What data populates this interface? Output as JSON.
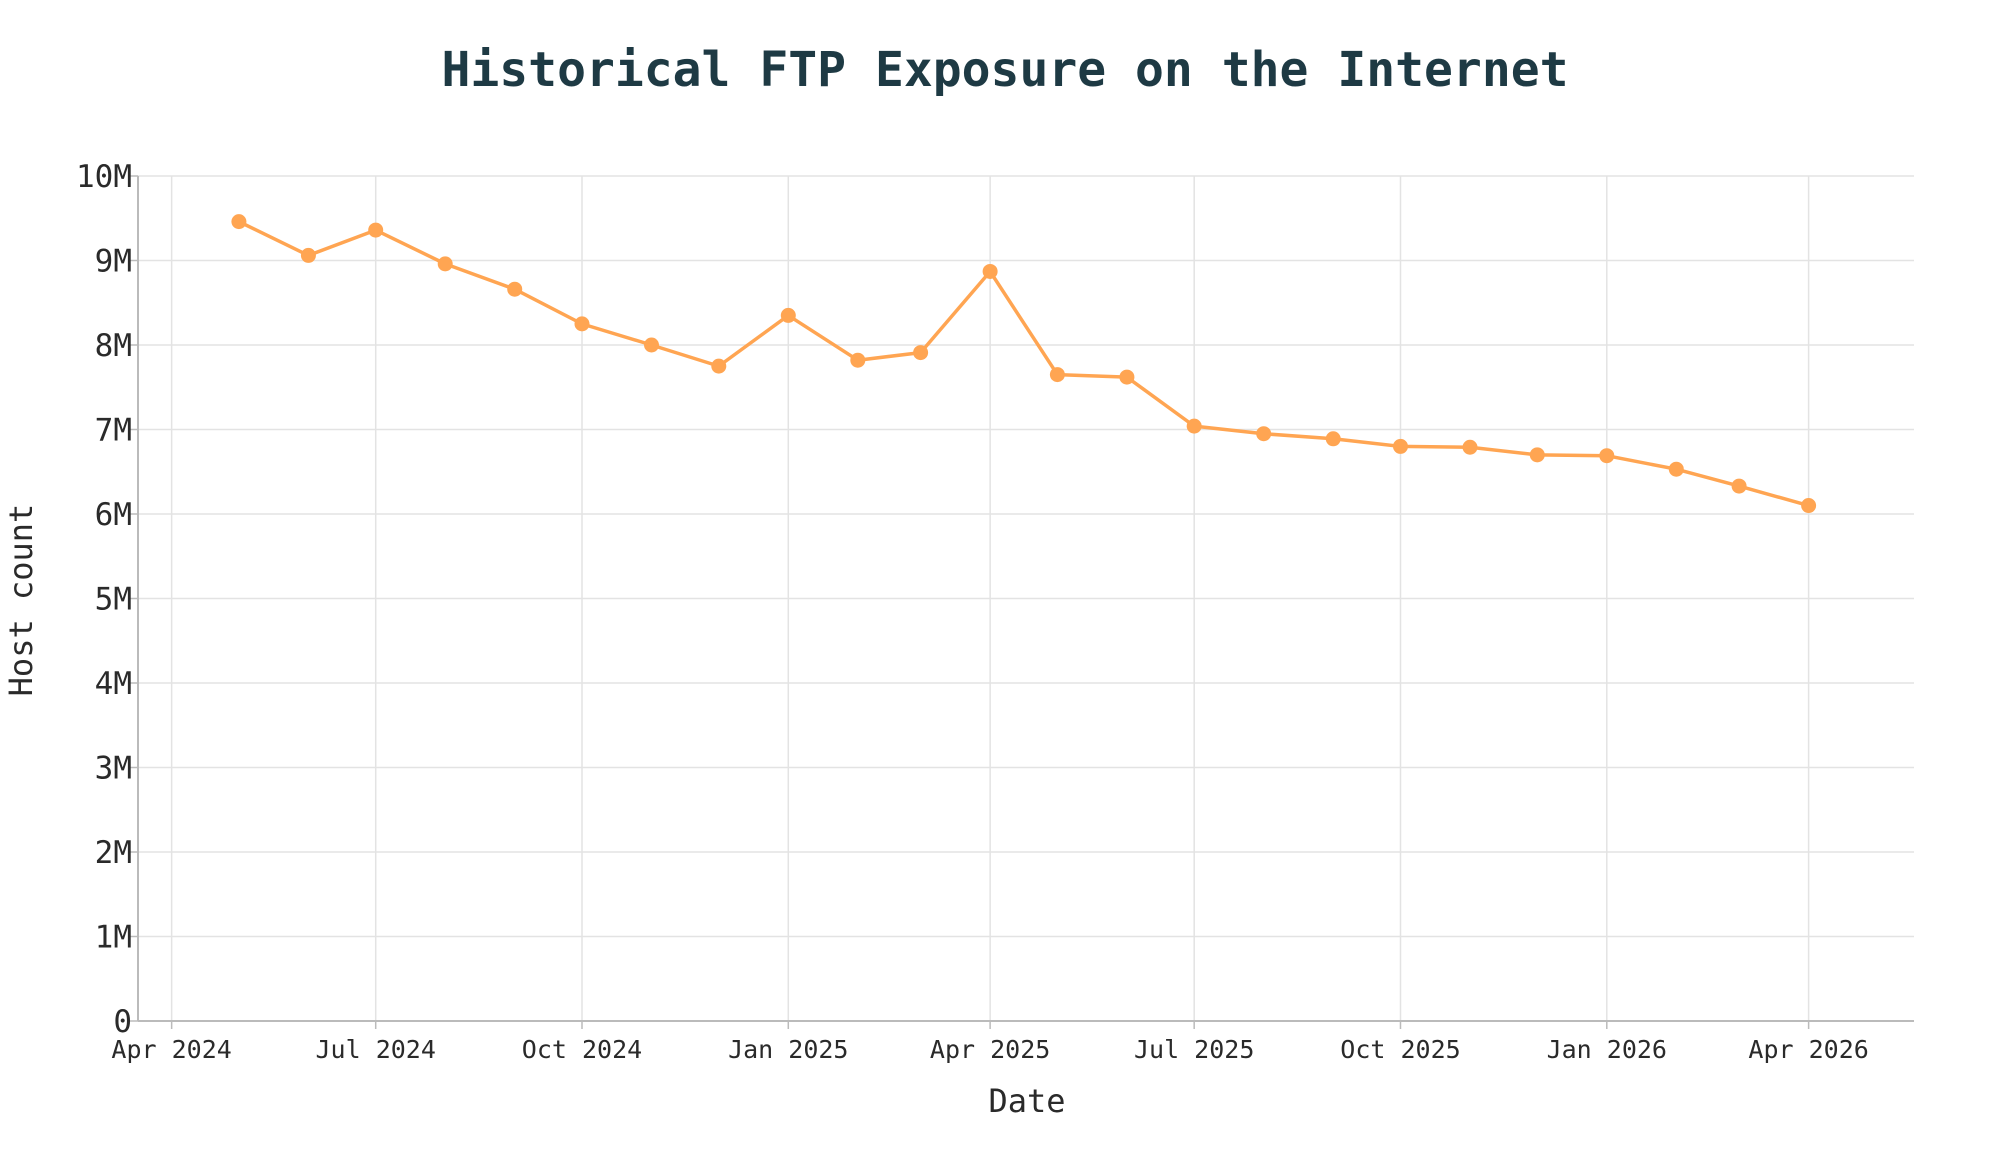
{
  "chart_data": {
    "type": "line",
    "title": "Historical FTP Exposure on the Internet",
    "xlabel": "Date",
    "ylabel": "Host count",
    "xlim": [
      "2024-03-17",
      "2026-05-18"
    ],
    "ylim": [
      0,
      10000000
    ],
    "grid": true,
    "color": "#ffa552",
    "x_ticks": [
      {
        "date": "2024-04-01",
        "label": "Apr 2024"
      },
      {
        "date": "2024-07-01",
        "label": "Jul 2024"
      },
      {
        "date": "2024-10-01",
        "label": "Oct 2024"
      },
      {
        "date": "2025-01-01",
        "label": "Jan 2025"
      },
      {
        "date": "2025-04-01",
        "label": "Apr 2025"
      },
      {
        "date": "2025-07-01",
        "label": "Jul 2025"
      },
      {
        "date": "2025-10-01",
        "label": "Oct 2025"
      },
      {
        "date": "2026-01-01",
        "label": "Jan 2026"
      },
      {
        "date": "2026-04-01",
        "label": "Apr 2026"
      }
    ],
    "y_ticks": [
      {
        "value": 0,
        "label": "0"
      },
      {
        "value": 1000000,
        "label": "1M"
      },
      {
        "value": 2000000,
        "label": "2M"
      },
      {
        "value": 3000000,
        "label": "3M"
      },
      {
        "value": 4000000,
        "label": "4M"
      },
      {
        "value": 5000000,
        "label": "5M"
      },
      {
        "value": 6000000,
        "label": "6M"
      },
      {
        "value": 7000000,
        "label": "7M"
      },
      {
        "value": 8000000,
        "label": "8M"
      },
      {
        "value": 9000000,
        "label": "9M"
      },
      {
        "value": 10000000,
        "label": "10M"
      }
    ],
    "x": [
      "2024-05-01",
      "2024-06-01",
      "2024-07-01",
      "2024-08-01",
      "2024-09-01",
      "2024-10-01",
      "2024-11-01",
      "2024-12-01",
      "2025-01-01",
      "2025-02-01",
      "2025-03-01",
      "2025-04-01",
      "2025-05-01",
      "2025-06-01",
      "2025-07-01",
      "2025-08-01",
      "2025-09-01",
      "2025-10-01",
      "2025-11-01",
      "2025-12-01",
      "2026-01-01",
      "2026-02-01",
      "2026-03-01",
      "2026-04-01"
    ],
    "y": [
      9460000,
      9060000,
      9360000,
      8960000,
      8660000,
      8250000,
      8000000,
      7750000,
      8350000,
      7820000,
      7910000,
      8870000,
      7650000,
      7620000,
      7040000,
      6950000,
      6890000,
      6800000,
      6790000,
      6700000,
      6690000,
      6530000,
      6330000,
      6100000
    ]
  }
}
